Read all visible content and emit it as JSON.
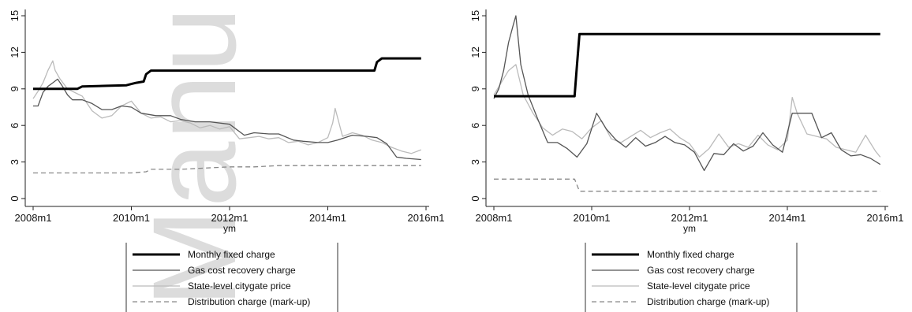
{
  "watermark": "Manu",
  "chart_data": [
    {
      "type": "line",
      "xlabel": "ym",
      "ylim": [
        0,
        15
      ],
      "yticks": [
        0,
        3,
        6,
        9,
        12,
        15
      ],
      "xlim": [
        2008,
        2016
      ],
      "xticks": [
        2008,
        2010,
        2012,
        2014,
        2016
      ],
      "xtick_labels": [
        "2008m1",
        "2010m1",
        "2012m1",
        "2014m1",
        "2016m1"
      ],
      "grid": false,
      "legend": "bottom",
      "series": [
        {
          "name": "Monthly fixed charge",
          "color": "#000000",
          "style": "thick",
          "x": [
            2008.0,
            2008.9,
            2009.0,
            2009.5,
            2009.9,
            2010.0,
            2010.1,
            2010.25,
            2010.3,
            2010.4,
            2011.0,
            2012.0,
            2013.0,
            2014.0,
            2014.95,
            2015.0,
            2015.1,
            2015.5,
            2015.9
          ],
          "y": [
            9.0,
            9.0,
            9.2,
            9.25,
            9.3,
            9.4,
            9.5,
            9.6,
            10.2,
            10.5,
            10.5,
            10.5,
            10.5,
            10.5,
            10.5,
            11.2,
            11.5,
            11.5,
            11.5
          ]
        },
        {
          "name": "Gas cost recovery charge",
          "color": "#555555",
          "style": "solid",
          "x": [
            2008.0,
            2008.1,
            2008.2,
            2008.3,
            2008.4,
            2008.5,
            2008.6,
            2008.7,
            2008.8,
            2009.0,
            2009.2,
            2009.4,
            2009.6,
            2009.8,
            2010.0,
            2010.2,
            2010.5,
            2010.8,
            2011.0,
            2011.3,
            2011.6,
            2012.0,
            2012.3,
            2012.5,
            2012.8,
            2013.0,
            2013.3,
            2013.5,
            2013.8,
            2014.0,
            2014.2,
            2014.5,
            2014.8,
            2015.0,
            2015.2,
            2015.4,
            2015.6,
            2015.9
          ],
          "y": [
            7.6,
            7.6,
            8.7,
            9.2,
            9.5,
            9.8,
            9.2,
            8.5,
            8.1,
            8.1,
            7.8,
            7.3,
            7.3,
            7.6,
            7.5,
            7.0,
            6.8,
            6.8,
            6.5,
            6.3,
            6.3,
            6.1,
            5.2,
            5.4,
            5.3,
            5.3,
            4.8,
            4.7,
            4.6,
            4.6,
            4.8,
            5.2,
            5.1,
            5.0,
            4.5,
            3.4,
            3.3,
            3.2
          ]
        },
        {
          "name": "State-level citygate price",
          "color": "#bbbbbb",
          "style": "solid",
          "x": [
            2008.0,
            2008.1,
            2008.2,
            2008.3,
            2008.4,
            2008.45,
            2008.55,
            2008.7,
            2008.9,
            2009.0,
            2009.2,
            2009.4,
            2009.6,
            2009.8,
            2010.0,
            2010.2,
            2010.4,
            2010.6,
            2010.8,
            2011.0,
            2011.2,
            2011.4,
            2011.6,
            2011.8,
            2012.0,
            2012.2,
            2012.4,
            2012.6,
            2012.8,
            2013.0,
            2013.2,
            2013.4,
            2013.6,
            2013.8,
            2014.0,
            2014.1,
            2014.15,
            2014.3,
            2014.5,
            2014.7,
            2014.9,
            2015.1,
            2015.3,
            2015.5,
            2015.7,
            2015.9
          ],
          "y": [
            8.2,
            8.8,
            9.5,
            10.5,
            11.3,
            10.5,
            9.8,
            9.0,
            8.6,
            8.4,
            7.2,
            6.6,
            6.8,
            7.6,
            8.0,
            7.0,
            6.6,
            6.7,
            6.3,
            6.4,
            6.2,
            5.8,
            6.0,
            5.7,
            5.9,
            4.9,
            5.0,
            5.1,
            4.9,
            5.0,
            4.6,
            4.7,
            4.4,
            4.6,
            5.0,
            6.2,
            7.4,
            5.1,
            5.4,
            5.2,
            4.8,
            4.6,
            4.2,
            3.9,
            3.7,
            4.0
          ]
        },
        {
          "name": "Distribution charge (mark-up)",
          "color": "#888888",
          "style": "dashed",
          "x": [
            2008.0,
            2009.0,
            2010.0,
            2010.3,
            2010.4,
            2011.0,
            2011.5,
            2012.0,
            2012.5,
            2013.0,
            2014.0,
            2015.0,
            2015.9
          ],
          "y": [
            2.1,
            2.1,
            2.1,
            2.2,
            2.4,
            2.4,
            2.5,
            2.6,
            2.6,
            2.7,
            2.7,
            2.7,
            2.7
          ]
        }
      ]
    },
    {
      "type": "line",
      "xlabel": "ym",
      "ylim": [
        0,
        15
      ],
      "yticks": [
        0,
        3,
        6,
        9,
        12,
        15
      ],
      "xlim": [
        2008,
        2016
      ],
      "xticks": [
        2008,
        2010,
        2012,
        2014,
        2016
      ],
      "xtick_labels": [
        "2008m1",
        "2010m1",
        "2012m1",
        "2014m1",
        "2016m1"
      ],
      "grid": false,
      "legend": "bottom",
      "series": [
        {
          "name": "Monthly fixed charge",
          "color": "#000000",
          "style": "thick",
          "x": [
            2008.0,
            2008.5,
            2009.0,
            2009.5,
            2009.65,
            2009.7,
            2009.75,
            2010.0,
            2011.0,
            2012.0,
            2013.0,
            2014.0,
            2015.0,
            2015.9
          ],
          "y": [
            8.4,
            8.4,
            8.4,
            8.4,
            8.4,
            11.0,
            13.5,
            13.5,
            13.5,
            13.5,
            13.5,
            13.5,
            13.5,
            13.5
          ]
        },
        {
          "name": "Gas cost recovery charge",
          "color": "#555555",
          "style": "solid",
          "x": [
            2008.0,
            2008.1,
            2008.2,
            2008.3,
            2008.4,
            2008.45,
            2008.55,
            2008.7,
            2008.9,
            2009.1,
            2009.3,
            2009.5,
            2009.7,
            2009.9,
            2010.1,
            2010.3,
            2010.5,
            2010.7,
            2010.9,
            2011.1,
            2011.3,
            2011.5,
            2011.7,
            2011.9,
            2012.1,
            2012.3,
            2012.5,
            2012.7,
            2012.9,
            2013.1,
            2013.3,
            2013.5,
            2013.7,
            2013.9,
            2014.1,
            2014.3,
            2014.5,
            2014.7,
            2014.9,
            2015.1,
            2015.3,
            2015.5,
            2015.7,
            2015.9
          ],
          "y": [
            8.2,
            9.0,
            10.5,
            12.8,
            14.3,
            15.0,
            11.0,
            8.5,
            6.5,
            4.6,
            4.6,
            4.1,
            3.4,
            4.5,
            7.0,
            5.7,
            4.8,
            4.2,
            5.0,
            4.3,
            4.6,
            5.1,
            4.6,
            4.4,
            3.8,
            2.3,
            3.7,
            3.6,
            4.5,
            3.9,
            4.3,
            5.4,
            4.4,
            3.8,
            7.0,
            7.0,
            7.0,
            5.0,
            5.4,
            4.0,
            3.5,
            3.6,
            3.3,
            2.8
          ]
        },
        {
          "name": "State-level citygate price",
          "color": "#bbbbbb",
          "style": "solid",
          "x": [
            2008.0,
            2008.15,
            2008.3,
            2008.45,
            2008.6,
            2008.8,
            2009.0,
            2009.2,
            2009.4,
            2009.6,
            2009.8,
            2010.0,
            2010.2,
            2010.4,
            2010.6,
            2010.8,
            2011.0,
            2011.2,
            2011.4,
            2011.6,
            2011.8,
            2012.0,
            2012.2,
            2012.4,
            2012.6,
            2012.8,
            2013.0,
            2013.2,
            2013.4,
            2013.6,
            2013.8,
            2014.0,
            2014.1,
            2014.2,
            2014.4,
            2014.6,
            2014.8,
            2015.0,
            2015.2,
            2015.4,
            2015.6,
            2015.8,
            2015.9
          ],
          "y": [
            8.5,
            9.5,
            10.5,
            11.0,
            8.5,
            7.0,
            5.8,
            5.2,
            5.7,
            5.5,
            4.9,
            5.8,
            6.4,
            4.9,
            4.6,
            5.1,
            5.6,
            5.0,
            5.4,
            5.7,
            5.0,
            4.5,
            3.4,
            4.1,
            5.3,
            4.2,
            4.5,
            4.2,
            5.2,
            4.4,
            4.0,
            4.8,
            8.3,
            7.0,
            5.3,
            5.1,
            4.9,
            4.2,
            4.0,
            3.8,
            5.2,
            3.9,
            3.4
          ]
        },
        {
          "name": "Distribution charge (mark-up)",
          "color": "#888888",
          "style": "dashed",
          "x": [
            2008.0,
            2009.0,
            2009.65,
            2009.75,
            2010.0,
            2011.0,
            2012.0,
            2013.0,
            2014.0,
            2015.0,
            2015.9
          ],
          "y": [
            1.6,
            1.6,
            1.6,
            0.6,
            0.6,
            0.6,
            0.6,
            0.6,
            0.6,
            0.6,
            0.6
          ]
        }
      ]
    }
  ]
}
